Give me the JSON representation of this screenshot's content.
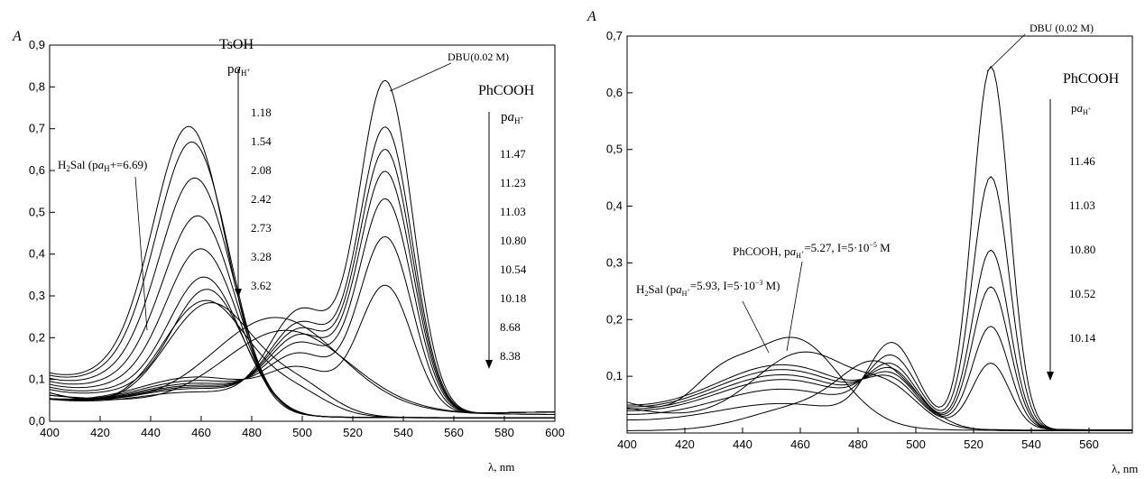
{
  "chart_data": [
    {
      "type": "line",
      "xlabel": "λ, nm",
      "ylabel": "A",
      "xlim": [
        400,
        600
      ],
      "ylim": [
        0,
        0.9
      ],
      "x_ticks": [
        "400",
        "420",
        "440",
        "460",
        "480",
        "500",
        "520",
        "540",
        "560",
        "580",
        "600"
      ],
      "y_ticks": [
        "0,0",
        "0,1",
        "0,2",
        "0,3",
        "0,4",
        "0,5",
        "0,6",
        "0,7",
        "0,8",
        "0,9"
      ],
      "grid": false,
      "acid_group": {
        "acid": "TsOH",
        "pa_label": "paH+",
        "values": [
          "1.18",
          "1.54",
          "2.08",
          "2.42",
          "2.73",
          "3.28",
          "3.62"
        ]
      },
      "base_group": {
        "acid": "PhCOOH",
        "pa_label": "paH+",
        "values": [
          "11.47",
          "11.23",
          "11.03",
          "10.80",
          "10.54",
          "10.18",
          "8.68",
          "8.38"
        ]
      },
      "annotations": [
        "DBU(0.02 M)",
        "H2Sal (paH+=6.69)"
      ],
      "series_color_accents": [
        "#8b1a1a",
        "#1a7a1a"
      ]
    },
    {
      "type": "line",
      "xlabel": "λ, nm",
      "ylabel": "A",
      "xlim": [
        400,
        575
      ],
      "ylim": [
        0,
        0.7
      ],
      "x_ticks": [
        "400",
        "420",
        "440",
        "460",
        "480",
        "500",
        "520",
        "540",
        "560"
      ],
      "y_ticks": [
        "0,1",
        "0,2",
        "0,3",
        "0,4",
        "0,5",
        "0,6",
        "0,7"
      ],
      "grid": false,
      "base_group": {
        "acid": "PhCOOH",
        "pa_label": "paH+",
        "values": [
          "11.46",
          "11.03",
          "10.80",
          "10.52",
          "10.14"
        ]
      },
      "annotations": [
        "DBU (0.02 M)",
        "PhCOOH, paH+=5.27, I=5·10−5 M",
        "H2Sal (paH+=5.93, I=5·10−3 M)"
      ]
    }
  ]
}
